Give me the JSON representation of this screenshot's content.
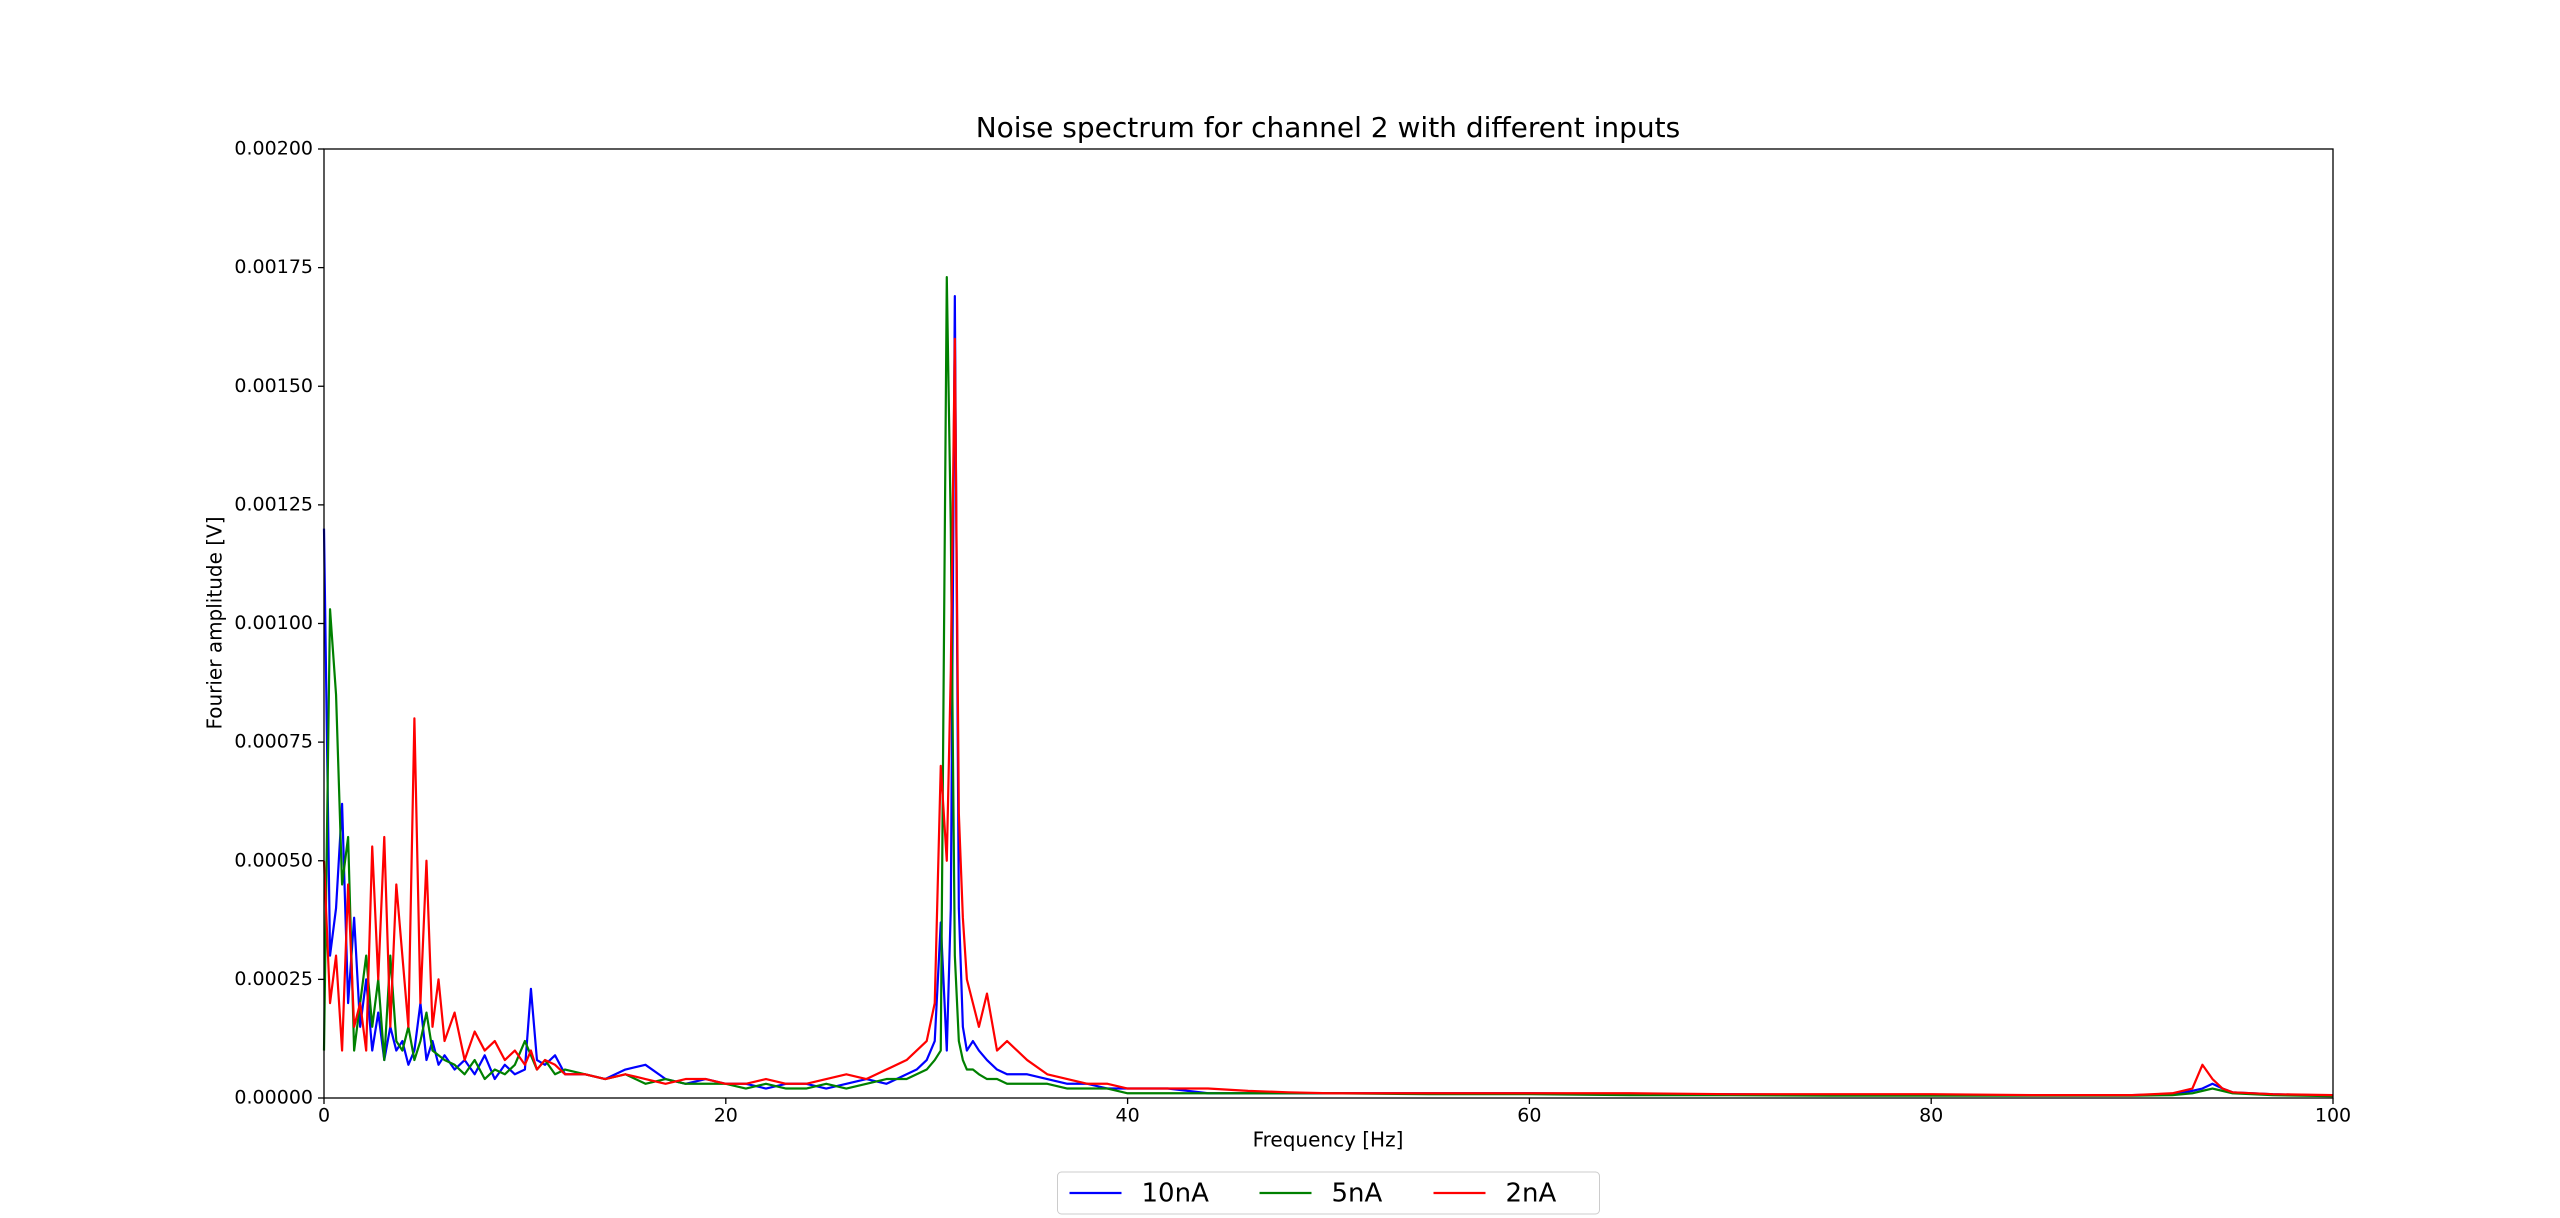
{
  "chart_data": {
    "type": "line",
    "title": "Noise spectrum for channel 2 with different inputs",
    "xlabel": "Frequency [Hz]",
    "ylabel": "Fourier amplitude [V]",
    "x": [
      0,
      0.3,
      0.6,
      0.9,
      1.2,
      1.5,
      1.8,
      2.1,
      2.4,
      2.7,
      3,
      3.3,
      3.6,
      3.9,
      4.2,
      4.5,
      4.8,
      5.1,
      5.4,
      5.7,
      6,
      6.5,
      7,
      7.5,
      8,
      8.5,
      9,
      9.5,
      10,
      10.3,
      10.6,
      11,
      11.5,
      12,
      13,
      14,
      15,
      16,
      17,
      18,
      19,
      20,
      21,
      22,
      23,
      24,
      25,
      26,
      27,
      28,
      29,
      29.5,
      30,
      30.4,
      30.7,
      31,
      31.2,
      31.4,
      31.6,
      31.8,
      32,
      32.3,
      32.6,
      33,
      33.5,
      34,
      35,
      36,
      37,
      38,
      39,
      40,
      42,
      44,
      46,
      48,
      50,
      55,
      60,
      65,
      70,
      75,
      80,
      85,
      90,
      92,
      93,
      93.5,
      94,
      94.5,
      95,
      97,
      100
    ],
    "series": [
      {
        "name": "10nA",
        "color": "#0000ff",
        "values": [
          0.0012,
          0.0003,
          0.0004,
          0.00062,
          0.0002,
          0.00038,
          0.00015,
          0.00025,
          0.0001,
          0.00018,
          8e-05,
          0.00015,
          0.0001,
          0.00012,
          7e-05,
          0.0001,
          0.0002,
          8e-05,
          0.00012,
          7e-05,
          9e-05,
          6e-05,
          8e-05,
          5e-05,
          9e-05,
          4e-05,
          7e-05,
          5e-05,
          6e-05,
          0.00023,
          8e-05,
          7e-05,
          9e-05,
          5e-05,
          5e-05,
          4e-05,
          6e-05,
          7e-05,
          4e-05,
          3e-05,
          4e-05,
          3e-05,
          3e-05,
          2e-05,
          3e-05,
          3e-05,
          2e-05,
          3e-05,
          4e-05,
          3e-05,
          5e-05,
          6e-05,
          8e-05,
          0.00012,
          0.00037,
          0.0001,
          0.0004,
          0.00169,
          0.0004,
          0.00015,
          0.0001,
          0.00012,
          0.0001,
          8e-05,
          6e-05,
          5e-05,
          5e-05,
          4e-05,
          3e-05,
          3e-05,
          2e-05,
          2e-05,
          2e-05,
          1e-05,
          1e-05,
          1e-05,
          1e-05,
          1e-05,
          1e-05,
          8e-06,
          8e-06,
          6e-06,
          6e-06,
          6e-06,
          6e-06,
          8e-06,
          1.5e-05,
          2e-05,
          3e-05,
          2e-05,
          1.2e-05,
          8e-06,
          5e-06
        ]
      },
      {
        "name": "5nA",
        "color": "#008000",
        "values": [
          0.0001,
          0.00103,
          0.00085,
          0.00045,
          0.00055,
          0.0001,
          0.0002,
          0.0003,
          0.00015,
          0.00025,
          8e-05,
          0.0003,
          0.00012,
          0.0001,
          0.00015,
          8e-05,
          0.00012,
          0.00018,
          0.0001,
          9e-05,
          8e-05,
          7e-05,
          5e-05,
          8e-05,
          4e-05,
          6e-05,
          5e-05,
          7e-05,
          0.00012,
          9e-05,
          6e-05,
          8e-05,
          5e-05,
          6e-05,
          5e-05,
          4e-05,
          5e-05,
          3e-05,
          4e-05,
          3e-05,
          3e-05,
          3e-05,
          2e-05,
          3e-05,
          2e-05,
          2e-05,
          3e-05,
          2e-05,
          3e-05,
          4e-05,
          4e-05,
          5e-05,
          6e-05,
          8e-05,
          0.0001,
          0.00173,
          0.0012,
          0.0003,
          0.00012,
          8e-05,
          6e-05,
          6e-05,
          5e-05,
          4e-05,
          4e-05,
          3e-05,
          3e-05,
          3e-05,
          2e-05,
          2e-05,
          2e-05,
          1e-05,
          1e-05,
          1e-05,
          1e-05,
          1e-05,
          1e-05,
          8e-06,
          8e-06,
          6e-06,
          6e-06,
          5e-06,
          5e-06,
          5e-06,
          5e-06,
          6e-06,
          1e-05,
          1.5e-05,
          2e-05,
          1.5e-05,
          1e-05,
          6e-06,
          4e-06
        ]
      },
      {
        "name": "2nA",
        "color": "#ff0000",
        "values": [
          0.0005,
          0.0002,
          0.0003,
          0.0001,
          0.00045,
          0.00015,
          0.0002,
          0.0001,
          0.00053,
          0.00025,
          0.00055,
          0.00015,
          0.00045,
          0.0003,
          0.00015,
          0.0008,
          0.0002,
          0.0005,
          0.00015,
          0.00025,
          0.00012,
          0.00018,
          8e-05,
          0.00014,
          0.0001,
          0.00012,
          8e-05,
          0.0001,
          7e-05,
          0.0001,
          6e-05,
          8e-05,
          7e-05,
          5e-05,
          5e-05,
          4e-05,
          5e-05,
          4e-05,
          3e-05,
          4e-05,
          4e-05,
          3e-05,
          3e-05,
          4e-05,
          3e-05,
          3e-05,
          4e-05,
          5e-05,
          4e-05,
          6e-05,
          8e-05,
          0.0001,
          0.00012,
          0.0002,
          0.0007,
          0.0005,
          0.0009,
          0.0016,
          0.0006,
          0.00038,
          0.00025,
          0.0002,
          0.00015,
          0.00022,
          0.0001,
          0.00012,
          8e-05,
          5e-05,
          4e-05,
          3e-05,
          3e-05,
          2e-05,
          2e-05,
          2e-05,
          1.5e-05,
          1.2e-05,
          1e-05,
          1e-05,
          1e-05,
          1e-05,
          8e-06,
          8e-06,
          8e-06,
          6e-06,
          6e-06,
          1e-05,
          2e-05,
          7e-05,
          4e-05,
          2e-05,
          1.2e-05,
          8e-06,
          6e-06
        ]
      }
    ],
    "xlim": [
      0,
      100
    ],
    "xticks": [
      0,
      20,
      40,
      60,
      80,
      100
    ],
    "ylim": [
      0,
      0.002
    ],
    "yticks": [
      {
        "value": 0,
        "label": "0.00000"
      },
      {
        "value": 0.00025,
        "label": "0.00025"
      },
      {
        "value": 0.0005,
        "label": "0.00050"
      },
      {
        "value": 0.00075,
        "label": "0.00075"
      },
      {
        "value": 0.001,
        "label": "0.00100"
      },
      {
        "value": 0.00125,
        "label": "0.00125"
      },
      {
        "value": 0.0015,
        "label": "0.00150"
      },
      {
        "value": 0.00175,
        "label": "0.00175"
      },
      {
        "value": 0.002,
        "label": "0.00200"
      }
    ],
    "grid": false,
    "legend": "bottom"
  }
}
